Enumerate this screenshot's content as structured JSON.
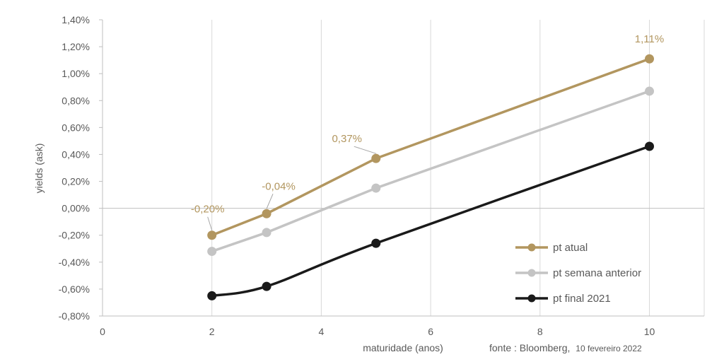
{
  "chart_data": {
    "type": "line",
    "xlabel": "maturidade (anos)",
    "ylabel": "yields (ask)",
    "xlim": [
      0,
      11
    ],
    "ylim": [
      -0.8,
      1.4
    ],
    "x_ticks": [
      "0",
      "2",
      "4",
      "6",
      "8",
      "10"
    ],
    "y_ticks": [
      "1,40%",
      "1,20%",
      "1,00%",
      "0,80%",
      "0,60%",
      "0,40%",
      "0,20%",
      "0,00%",
      "-0,20%",
      "-0,40%",
      "-0,60%",
      "-0,80%"
    ],
    "grid": "vertical",
    "legend_position": "bottom-right",
    "series": [
      {
        "name": "pt atual",
        "color": "#b2965f",
        "x": [
          2,
          3,
          5,
          10
        ],
        "values": [
          -0.2,
          -0.04,
          0.37,
          1.11
        ],
        "labels": [
          "-0,20%",
          "-0,04%",
          "0,37%",
          "1,11%"
        ]
      },
      {
        "name": "pt semana anterior",
        "color": "#c4c4c4",
        "x": [
          2,
          3,
          5,
          10
        ],
        "values": [
          -0.32,
          -0.18,
          0.15,
          0.87
        ]
      },
      {
        "name": "pt final 2021",
        "color": "#1a1a1a",
        "x": [
          2,
          3,
          5,
          10
        ],
        "values": [
          -0.65,
          -0.58,
          -0.26,
          0.46
        ]
      }
    ]
  },
  "source": {
    "main": "fonte : Bloomberg,",
    "date": "10 fevereiro 2022"
  }
}
